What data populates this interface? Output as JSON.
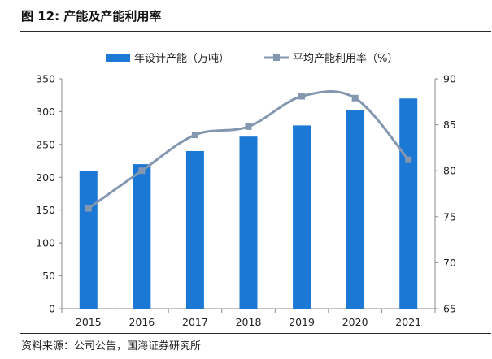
{
  "figure": {
    "title": "图 12:  产能及产能利用率",
    "source": "资料来源：公司公告，国海证券研究所"
  },
  "colors": {
    "bar": "#1b78d4",
    "line": "#8497b0",
    "marker": "#8497b0",
    "axis": "#888888",
    "tick_text": "#222222"
  },
  "chart_data": {
    "type": "bar",
    "categories": [
      "2015",
      "2016",
      "2017",
      "2018",
      "2019",
      "2020",
      "2021"
    ],
    "series": [
      {
        "name": "年设计产能（万吨）",
        "type": "bar",
        "axis": "left",
        "values": [
          210,
          220,
          240,
          262,
          279,
          303,
          320
        ]
      },
      {
        "name": "平均产能利用率（%）",
        "type": "line",
        "smooth": true,
        "axis": "right",
        "values": [
          75.9,
          80.0,
          83.9,
          84.8,
          88.1,
          87.9,
          81.2
        ]
      }
    ],
    "y_left": {
      "min": 0,
      "max": 350,
      "ticks": [
        0,
        50,
        100,
        150,
        200,
        250,
        300,
        350
      ]
    },
    "y_right": {
      "min": 65,
      "max": 90,
      "ticks": [
        65,
        70,
        75,
        80,
        85,
        90
      ]
    },
    "grid": false,
    "legend_position": "top"
  }
}
